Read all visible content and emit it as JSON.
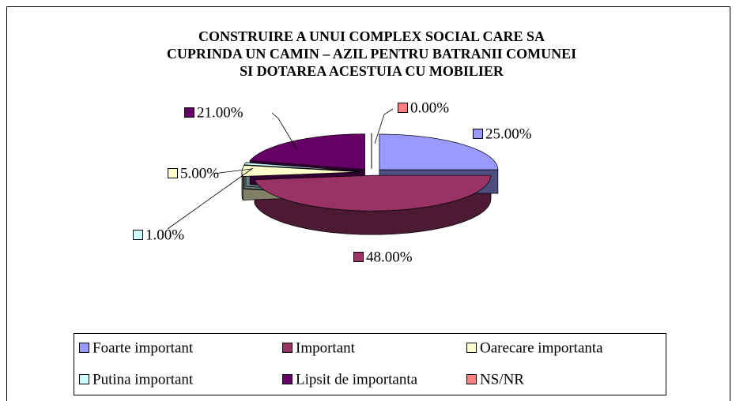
{
  "chart_data": {
    "type": "pie",
    "title": [
      "CONSTRUIRE A UNUI COMPLEX SOCIAL CARE SA",
      "CUPRINDA UN CAMIN – AZIL PENTRU BATRANII COMUNEI",
      "SI DOTAREA ACESTUIA CU MOBILIER"
    ],
    "categories": [
      "Foarte important",
      "Important",
      "Oarecare importanta",
      "Putina important",
      "Lipsit de importanta",
      "NS/NR"
    ],
    "values": [
      25,
      48,
      5,
      1,
      21,
      0
    ],
    "value_labels": [
      "25.00%",
      "48.00%",
      "5.00%",
      "1.00%",
      "21.00%",
      "0.00%"
    ],
    "colors": [
      "#9999ff",
      "#993366",
      "#ffffcc",
      "#ccffff",
      "#660066",
      "#ff8080"
    ],
    "legend": "bottom"
  }
}
